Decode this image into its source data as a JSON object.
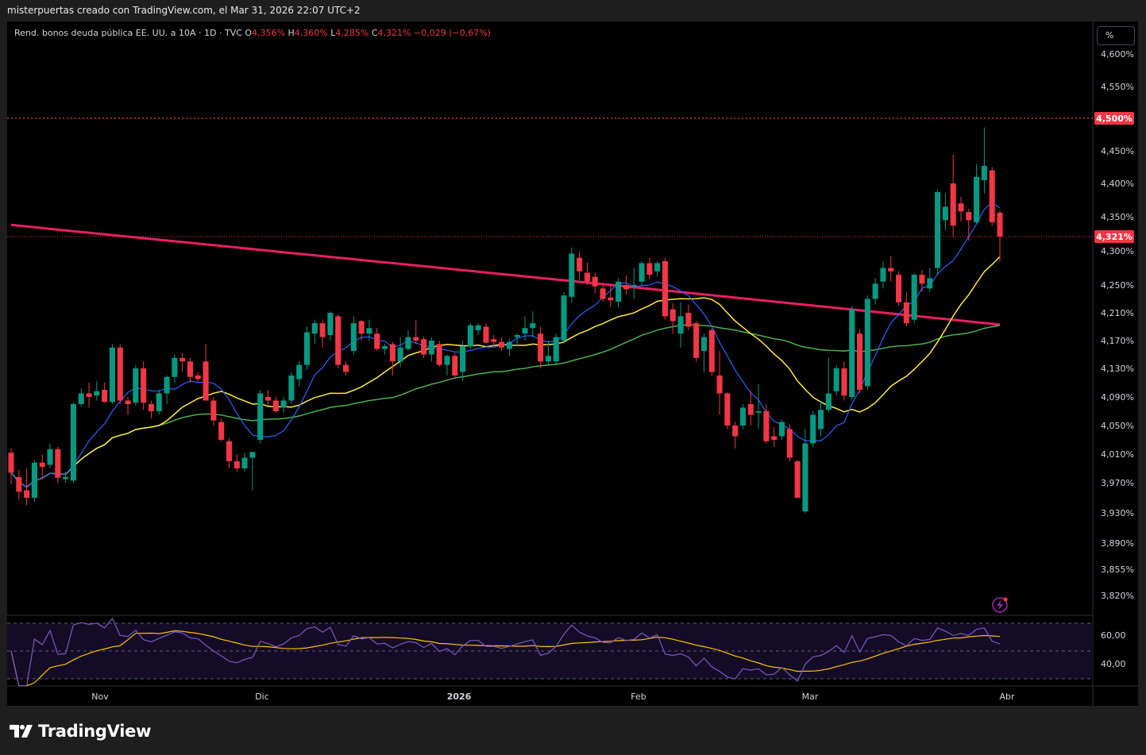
{
  "header": "misterpuertas creado con TradingView.com, el Mar 31, 2026 22:07 UTC+2",
  "legend": {
    "symbol": "Rend. bonos deuda pública EE. UU. a 10A · 1D · TVC",
    "open_label": "O",
    "open": "4,356%",
    "high_label": "H",
    "high": "4,360%",
    "low_label": "L",
    "low": "4,285%",
    "close_label": "C",
    "close": "4,321%",
    "change": "−0,029 (−0,67%)"
  },
  "scale_button": "%",
  "logo_text": "TradingView",
  "colors": {
    "up": "#089981",
    "down": "#f23645",
    "ma_fast": "#2962ff",
    "ma_yellow": "#ffeb3b",
    "ma_green": "#4caf50",
    "ma_long": "#e91e63",
    "rsi": "#7e57c2",
    "rsi_ma": "#ffc107"
  },
  "chart_data": {
    "type": "candlestick",
    "price_axis_ticks": [
      "4,600%",
      "4,550%",
      "4,500%",
      "4,450%",
      "4,400%",
      "4,350%",
      "4,300%",
      "4,250%",
      "4,210%",
      "4,170%",
      "4,130%",
      "4,090%",
      "4,050%",
      "4,010%",
      "3,970%",
      "3,930%",
      "3,890%",
      "3,855%",
      "3,820%"
    ],
    "time_axis_ticks": [
      "Nov",
      "Dic",
      "2026",
      "Feb",
      "Mar",
      "Abr"
    ],
    "rsi_ticks": [
      "60,00",
      "40,00"
    ],
    "horizontal_line": {
      "value": 4.5,
      "label": "4,500%"
    },
    "last_price": {
      "value": 4.321,
      "label": "4,321%"
    },
    "candles": [
      {
        "o": 4.012,
        "h": 4.018,
        "l": 3.968,
        "c": 3.984
      },
      {
        "o": 3.978,
        "h": 3.988,
        "l": 3.947,
        "c": 3.958
      },
      {
        "o": 3.96,
        "h": 3.99,
        "l": 3.94,
        "c": 3.95
      },
      {
        "o": 3.95,
        "h": 4.002,
        "l": 3.945,
        "c": 3.998
      },
      {
        "o": 3.998,
        "h": 4.01,
        "l": 3.975,
        "c": 3.992
      },
      {
        "o": 3.995,
        "h": 4.025,
        "l": 3.99,
        "c": 4.017
      },
      {
        "o": 4.017,
        "h": 4.02,
        "l": 3.97,
        "c": 3.977
      },
      {
        "o": 3.975,
        "h": 3.985,
        "l": 3.97,
        "c": 3.978
      },
      {
        "o": 3.973,
        "h": 4.083,
        "l": 3.97,
        "c": 4.08
      },
      {
        "o": 4.08,
        "h": 4.102,
        "l": 4.077,
        "c": 4.095
      },
      {
        "o": 4.095,
        "h": 4.11,
        "l": 4.075,
        "c": 4.09
      },
      {
        "o": 4.092,
        "h": 4.112,
        "l": 4.085,
        "c": 4.098
      },
      {
        "o": 4.1,
        "h": 4.11,
        "l": 4.082,
        "c": 4.083
      },
      {
        "o": 4.083,
        "h": 4.165,
        "l": 4.08,
        "c": 4.16
      },
      {
        "o": 4.16,
        "h": 4.165,
        "l": 4.08,
        "c": 4.085
      },
      {
        "o": 4.085,
        "h": 4.09,
        "l": 4.065,
        "c": 4.08
      },
      {
        "o": 4.082,
        "h": 4.135,
        "l": 4.078,
        "c": 4.13
      },
      {
        "o": 4.13,
        "h": 4.14,
        "l": 4.072,
        "c": 4.082
      },
      {
        "o": 4.08,
        "h": 4.085,
        "l": 4.06,
        "c": 4.07
      },
      {
        "o": 4.07,
        "h": 4.1,
        "l": 4.065,
        "c": 4.095
      },
      {
        "o": 4.095,
        "h": 4.12,
        "l": 4.08,
        "c": 4.118
      },
      {
        "o": 4.118,
        "h": 4.15,
        "l": 4.11,
        "c": 4.145
      },
      {
        "o": 4.145,
        "h": 4.152,
        "l": 4.125,
        "c": 4.14
      },
      {
        "o": 4.14,
        "h": 4.145,
        "l": 4.11,
        "c": 4.118
      },
      {
        "o": 4.12,
        "h": 4.125,
        "l": 4.112,
        "c": 4.115
      },
      {
        "o": 4.14,
        "h": 4.165,
        "l": 4.085,
        "c": 4.085
      },
      {
        "o": 4.085,
        "h": 4.09,
        "l": 4.05,
        "c": 4.057
      },
      {
        "o": 4.055,
        "h": 4.06,
        "l": 4.028,
        "c": 4.03
      },
      {
        "o": 4.028,
        "h": 4.032,
        "l": 3.99,
        "c": 4.0
      },
      {
        "o": 4.0,
        "h": 4.01,
        "l": 3.985,
        "c": 3.99
      },
      {
        "o": 3.99,
        "h": 4.012,
        "l": 3.985,
        "c": 4.005
      },
      {
        "o": 4.005,
        "h": 4.012,
        "l": 3.96,
        "c": 4.013
      },
      {
        "o": 4.03,
        "h": 4.1,
        "l": 4.025,
        "c": 4.095
      },
      {
        "o": 4.09,
        "h": 4.1,
        "l": 4.078,
        "c": 4.085
      },
      {
        "o": 4.085,
        "h": 4.09,
        "l": 4.068,
        "c": 4.07
      },
      {
        "o": 4.075,
        "h": 4.09,
        "l": 4.068,
        "c": 4.085
      },
      {
        "o": 4.085,
        "h": 4.125,
        "l": 4.08,
        "c": 4.12
      },
      {
        "o": 4.115,
        "h": 4.14,
        "l": 4.105,
        "c": 4.135
      },
      {
        "o": 4.135,
        "h": 4.19,
        "l": 4.128,
        "c": 4.182
      },
      {
        "o": 4.18,
        "h": 4.2,
        "l": 4.165,
        "c": 4.195
      },
      {
        "o": 4.195,
        "h": 4.2,
        "l": 4.16,
        "c": 4.175
      },
      {
        "o": 4.178,
        "h": 4.212,
        "l": 4.17,
        "c": 4.21
      },
      {
        "o": 4.205,
        "h": 4.208,
        "l": 4.13,
        "c": 4.135
      },
      {
        "o": 4.135,
        "h": 4.14,
        "l": 4.12,
        "c": 4.125
      },
      {
        "o": 4.155,
        "h": 4.205,
        "l": 4.15,
        "c": 4.195
      },
      {
        "o": 4.198,
        "h": 4.2,
        "l": 4.17,
        "c": 4.18
      },
      {
        "o": 4.18,
        "h": 4.2,
        "l": 4.17,
        "c": 4.188
      },
      {
        "o": 4.18,
        "h": 4.188,
        "l": 4.155,
        "c": 4.158
      },
      {
        "o": 4.158,
        "h": 4.165,
        "l": 4.15,
        "c": 4.162
      },
      {
        "o": 4.165,
        "h": 4.168,
        "l": 4.12,
        "c": 4.14
      },
      {
        "o": 4.14,
        "h": 4.175,
        "l": 4.132,
        "c": 4.16
      },
      {
        "o": 4.158,
        "h": 4.185,
        "l": 4.155,
        "c": 4.175
      },
      {
        "o": 4.175,
        "h": 4.2,
        "l": 4.165,
        "c": 4.17
      },
      {
        "o": 4.172,
        "h": 4.176,
        "l": 4.145,
        "c": 4.15
      },
      {
        "o": 4.15,
        "h": 4.175,
        "l": 4.14,
        "c": 4.17
      },
      {
        "o": 4.165,
        "h": 4.17,
        "l": 4.132,
        "c": 4.135
      },
      {
        "o": 4.135,
        "h": 4.15,
        "l": 4.12,
        "c": 4.148
      },
      {
        "o": 4.148,
        "h": 4.152,
        "l": 4.115,
        "c": 4.12
      },
      {
        "o": 4.125,
        "h": 4.17,
        "l": 4.112,
        "c": 4.162
      },
      {
        "o": 4.162,
        "h": 4.195,
        "l": 4.158,
        "c": 4.192
      },
      {
        "o": 4.185,
        "h": 4.195,
        "l": 4.178,
        "c": 4.192
      },
      {
        "o": 4.19,
        "h": 4.195,
        "l": 4.165,
        "c": 4.167
      },
      {
        "o": 4.172,
        "h": 4.178,
        "l": 4.16,
        "c": 4.168
      },
      {
        "o": 4.168,
        "h": 4.175,
        "l": 4.155,
        "c": 4.16
      },
      {
        "o": 4.158,
        "h": 4.172,
        "l": 4.148,
        "c": 4.168
      },
      {
        "o": 4.175,
        "h": 4.18,
        "l": 4.162,
        "c": 4.178
      },
      {
        "o": 4.18,
        "h": 4.205,
        "l": 4.17,
        "c": 4.188
      },
      {
        "o": 4.188,
        "h": 4.212,
        "l": 4.175,
        "c": 4.195
      },
      {
        "o": 4.18,
        "h": 4.19,
        "l": 4.13,
        "c": 4.14
      },
      {
        "o": 4.14,
        "h": 4.17,
        "l": 4.135,
        "c": 4.148
      },
      {
        "o": 4.14,
        "h": 4.18,
        "l": 4.135,
        "c": 4.175
      },
      {
        "o": 4.17,
        "h": 4.24,
        "l": 4.165,
        "c": 4.235
      },
      {
        "o": 4.233,
        "h": 4.305,
        "l": 4.225,
        "c": 4.296
      },
      {
        "o": 4.29,
        "h": 4.3,
        "l": 4.258,
        "c": 4.27
      },
      {
        "o": 4.268,
        "h": 4.283,
        "l": 4.25,
        "c": 4.255
      },
      {
        "o": 4.262,
        "h": 4.268,
        "l": 4.238,
        "c": 4.248
      },
      {
        "o": 4.245,
        "h": 4.25,
        "l": 4.226,
        "c": 4.23
      },
      {
        "o": 4.232,
        "h": 4.25,
        "l": 4.218,
        "c": 4.228
      },
      {
        "o": 4.226,
        "h": 4.26,
        "l": 4.218,
        "c": 4.255
      },
      {
        "o": 4.25,
        "h": 4.264,
        "l": 4.236,
        "c": 4.244
      },
      {
        "o": 4.248,
        "h": 4.275,
        "l": 4.23,
        "c": 4.25
      },
      {
        "o": 4.255,
        "h": 4.285,
        "l": 4.248,
        "c": 4.282
      },
      {
        "o": 4.282,
        "h": 4.29,
        "l": 4.258,
        "c": 4.265
      },
      {
        "o": 4.27,
        "h": 4.285,
        "l": 4.262,
        "c": 4.282
      },
      {
        "o": 4.285,
        "h": 4.29,
        "l": 4.2,
        "c": 4.205
      },
      {
        "o": 4.215,
        "h": 4.224,
        "l": 4.18,
        "c": 4.198
      },
      {
        "o": 4.18,
        "h": 4.225,
        "l": 4.16,
        "c": 4.205
      },
      {
        "o": 4.21,
        "h": 4.222,
        "l": 4.185,
        "c": 4.19
      },
      {
        "o": 4.195,
        "h": 4.198,
        "l": 4.14,
        "c": 4.145
      },
      {
        "o": 4.155,
        "h": 4.18,
        "l": 4.125,
        "c": 4.175
      },
      {
        "o": 4.185,
        "h": 4.188,
        "l": 4.12,
        "c": 4.125
      },
      {
        "o": 4.12,
        "h": 4.155,
        "l": 4.065,
        "c": 4.095
      },
      {
        "o": 4.095,
        "h": 4.097,
        "l": 4.045,
        "c": 4.05
      },
      {
        "o": 4.05,
        "h": 4.055,
        "l": 4.018,
        "c": 4.035
      },
      {
        "o": 4.05,
        "h": 4.08,
        "l": 4.045,
        "c": 4.075
      },
      {
        "o": 4.08,
        "h": 4.098,
        "l": 4.05,
        "c": 4.065
      },
      {
        "o": 4.068,
        "h": 4.108,
        "l": 4.045,
        "c": 4.07
      },
      {
        "o": 4.07,
        "h": 4.08,
        "l": 4.025,
        "c": 4.028
      },
      {
        "o": 4.035,
        "h": 4.048,
        "l": 4.02,
        "c": 4.03
      },
      {
        "o": 4.035,
        "h": 4.058,
        "l": 4.03,
        "c": 4.055
      },
      {
        "o": 4.045,
        "h": 4.052,
        "l": 4.0,
        "c": 4.005
      },
      {
        "o": 4.0,
        "h": 4.002,
        "l": 3.95,
        "c": 3.95
      },
      {
        "o": 3.932,
        "h": 4.045,
        "l": 3.93,
        "c": 4.025
      },
      {
        "o": 4.025,
        "h": 4.07,
        "l": 4.02,
        "c": 4.065
      },
      {
        "o": 4.045,
        "h": 4.085,
        "l": 4.035,
        "c": 4.072
      },
      {
        "o": 4.072,
        "h": 4.145,
        "l": 4.068,
        "c": 4.095
      },
      {
        "o": 4.098,
        "h": 4.135,
        "l": 4.092,
        "c": 4.13
      },
      {
        "o": 4.13,
        "h": 4.14,
        "l": 4.085,
        "c": 4.092
      },
      {
        "o": 4.09,
        "h": 4.22,
        "l": 4.085,
        "c": 4.215
      },
      {
        "o": 4.18,
        "h": 4.186,
        "l": 4.095,
        "c": 4.1
      },
      {
        "o": 4.105,
        "h": 4.235,
        "l": 4.1,
        "c": 4.23
      },
      {
        "o": 4.23,
        "h": 4.26,
        "l": 4.222,
        "c": 4.252
      },
      {
        "o": 4.255,
        "h": 4.285,
        "l": 4.245,
        "c": 4.275
      },
      {
        "o": 4.275,
        "h": 4.292,
        "l": 4.255,
        "c": 4.27
      },
      {
        "o": 4.265,
        "h": 4.27,
        "l": 4.22,
        "c": 4.225
      },
      {
        "o": 4.225,
        "h": 4.24,
        "l": 4.19,
        "c": 4.195
      },
      {
        "o": 4.2,
        "h": 4.268,
        "l": 4.195,
        "c": 4.265
      },
      {
        "o": 4.265,
        "h": 4.272,
        "l": 4.24,
        "c": 4.252
      },
      {
        "o": 4.245,
        "h": 4.275,
        "l": 4.24,
        "c": 4.26
      },
      {
        "o": 4.275,
        "h": 4.391,
        "l": 4.265,
        "c": 4.387
      },
      {
        "o": 4.345,
        "h": 4.385,
        "l": 4.33,
        "c": 4.365
      },
      {
        "o": 4.4,
        "h": 4.444,
        "l": 4.32,
        "c": 4.337
      },
      {
        "o": 4.37,
        "h": 4.38,
        "l": 4.343,
        "c": 4.358
      },
      {
        "o": 4.357,
        "h": 4.362,
        "l": 4.315,
        "c": 4.345
      },
      {
        "o": 4.342,
        "h": 4.43,
        "l": 4.34,
        "c": 4.41
      },
      {
        "o": 4.405,
        "h": 4.486,
        "l": 4.385,
        "c": 4.427
      },
      {
        "o": 4.42,
        "h": 4.425,
        "l": 4.337,
        "c": 4.342
      },
      {
        "o": 4.356,
        "h": 4.36,
        "l": 4.285,
        "c": 4.321
      }
    ]
  }
}
